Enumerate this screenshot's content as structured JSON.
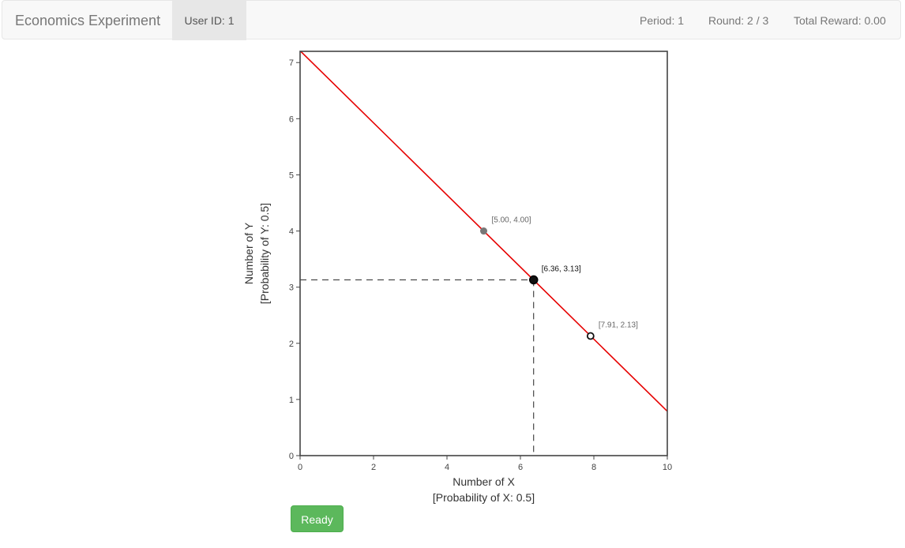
{
  "header": {
    "brand": "Economics Experiment",
    "user_id": "User ID: 1",
    "period": "Period: 1",
    "round": "Round: 2 / 3",
    "total_reward": "Total Reward: 0.00"
  },
  "chart_data": {
    "type": "line",
    "xlim": [
      0,
      10
    ],
    "ylim": [
      0,
      7.2
    ],
    "x_ticks": [
      0,
      2,
      4,
      6,
      8,
      10
    ],
    "y_ticks": [
      0,
      1,
      2,
      3,
      4,
      5,
      6,
      7
    ],
    "xlabel": [
      "Number of X",
      "[Probability of X: 0.5]"
    ],
    "ylabel": [
      "Number of Y",
      "[Probability of Y: 0.5]"
    ],
    "grid": false,
    "budget_line": {
      "points": [
        [
          0,
          7.21
        ],
        [
          10,
          0.79
        ]
      ],
      "color": "#e60000"
    },
    "points": [
      {
        "x": 5.0,
        "y": 4.0,
        "label": "[5.00, 4.00]",
        "style": "filled-gray"
      },
      {
        "x": 6.36,
        "y": 3.13,
        "label": "[6.36, 3.13]",
        "style": "selected"
      },
      {
        "x": 7.91,
        "y": 2.13,
        "label": "[7.91, 2.13]",
        "style": "hollow"
      }
    ],
    "guide_point": {
      "x": 6.36,
      "y": 3.13
    }
  },
  "actions": {
    "ready_label": "Ready"
  }
}
